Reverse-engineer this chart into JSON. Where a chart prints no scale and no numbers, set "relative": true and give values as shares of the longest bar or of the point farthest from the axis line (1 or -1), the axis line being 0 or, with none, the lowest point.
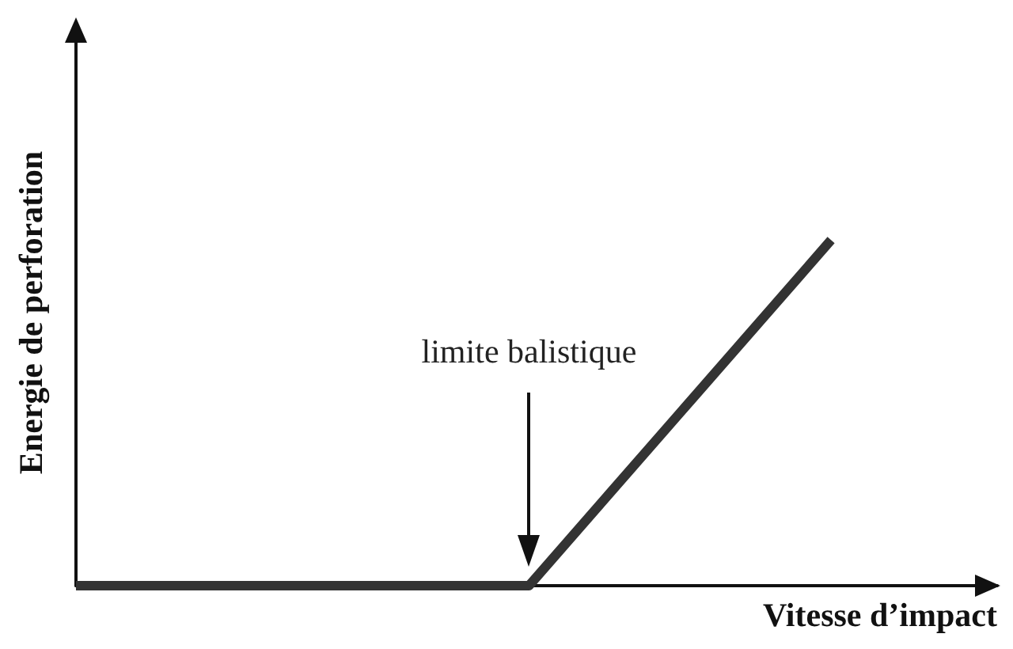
{
  "chart_data": {
    "type": "line",
    "relative": true,
    "xlabel": "Vitesse d’impact",
    "ylabel": "Energie de perforation",
    "categories": [
      null,
      null,
      null,
      null,
      null,
      null
    ],
    "series": [
      {
        "color": "#333333",
        "values": [
          0,
          0,
          0,
          0,
          0.5,
          1
        ]
      }
    ],
    "annotations": [
      "limite balistique"
    ],
    "grid": false,
    "marker": "none",
    "line_style": "solid"
  }
}
